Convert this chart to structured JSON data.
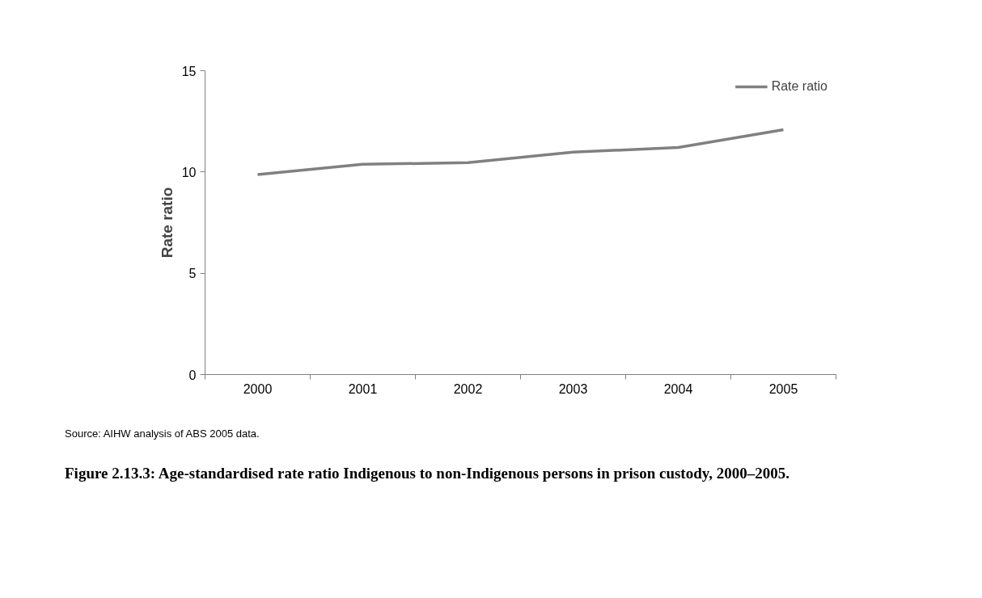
{
  "chart_data": {
    "type": "line",
    "title": "Figure 2.13.3: Age-standardised rate ratio Indigenous to non-Indigenous persons in prison custody, 2000–2005.",
    "ylabel": "Rate ratio",
    "categories": [
      "2000",
      "2001",
      "2002",
      "2003",
      "2004",
      "2005"
    ],
    "series": [
      {
        "name": "Rate ratio",
        "color": "#808080",
        "values": [
          9.87,
          10.38,
          10.46,
          10.98,
          11.21,
          12.09
        ]
      }
    ],
    "ylim": [
      0,
      15
    ],
    "yticks": [
      0,
      5,
      10,
      15
    ],
    "grid": false,
    "legend": "top right",
    "marker": "none",
    "line_style": "solid",
    "annotations": [
      "Source: AIHW analysis of ABS 2005 data."
    ]
  }
}
